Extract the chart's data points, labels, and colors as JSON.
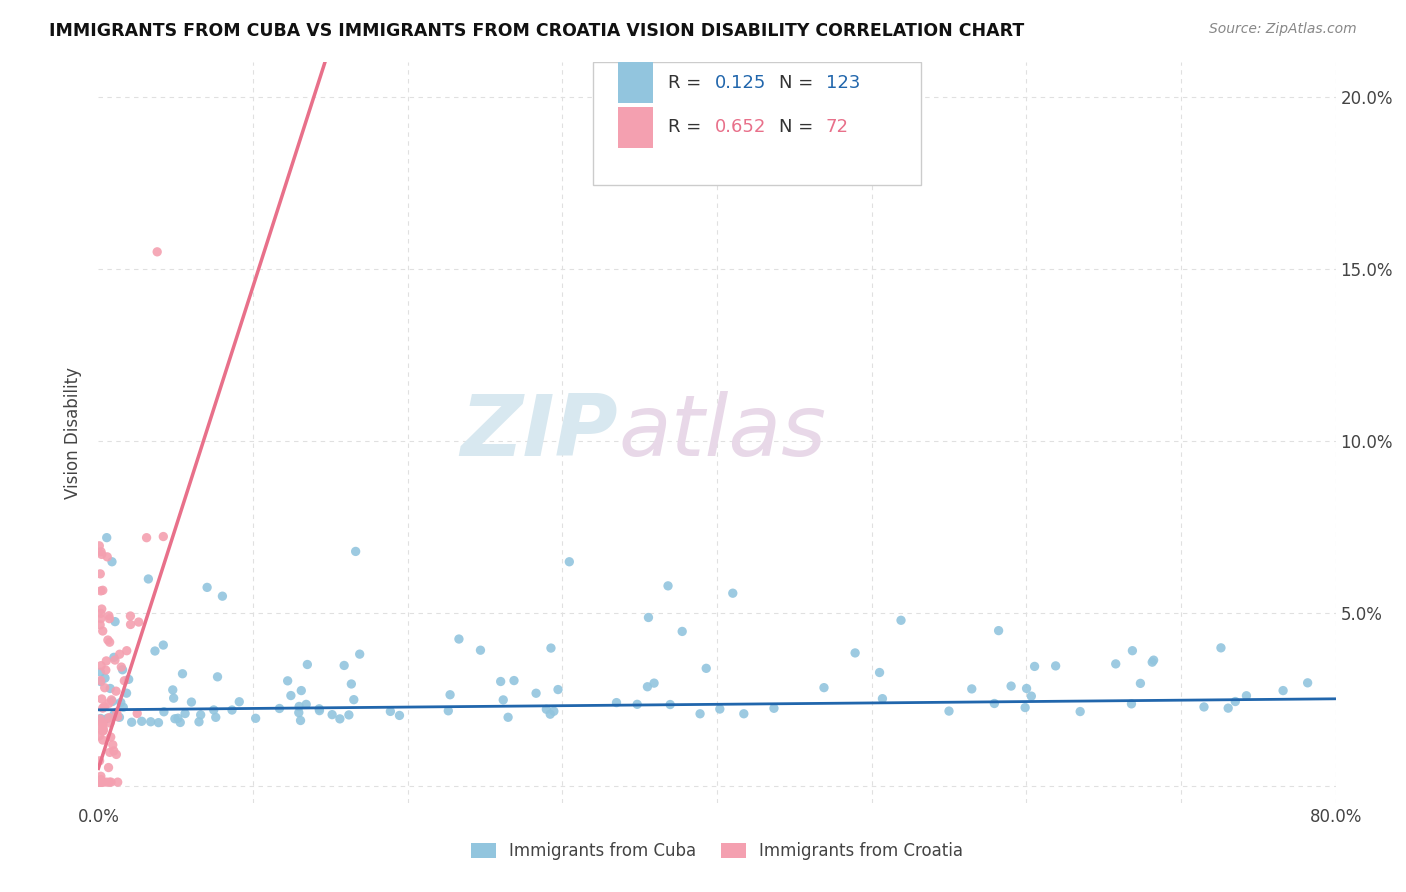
{
  "title": "IMMIGRANTS FROM CUBA VS IMMIGRANTS FROM CROATIA VISION DISABILITY CORRELATION CHART",
  "source": "Source: ZipAtlas.com",
  "ylabel": "Vision Disability",
  "xlim": [
    0.0,
    0.8
  ],
  "ylim": [
    -0.005,
    0.21
  ],
  "yticks": [
    0.0,
    0.05,
    0.1,
    0.15,
    0.2
  ],
  "yticklabels": [
    "",
    "5.0%",
    "10.0%",
    "15.0%",
    "20.0%"
  ],
  "xtick_positions": [
    0.0,
    0.1,
    0.2,
    0.3,
    0.4,
    0.5,
    0.6,
    0.7,
    0.8
  ],
  "xticklabels": [
    "0.0%",
    "",
    "",
    "",
    "",
    "",
    "",
    "",
    "80.0%"
  ],
  "cuba_R": 0.125,
  "cuba_N": 123,
  "croatia_R": 0.652,
  "croatia_N": 72,
  "cuba_color": "#92c5de",
  "croatia_color": "#f4a0b0",
  "cuba_line_color": "#2166ac",
  "croatia_line_color": "#e8708a",
  "watermark_zip": "ZIP",
  "watermark_atlas": "atlas",
  "background_color": "#ffffff",
  "grid_color": "#e0e0e0",
  "legend_r_color": "#2166ac",
  "legend_n_color": "#2166ac",
  "legend_r2_color": "#e8708a",
  "legend_n2_color": "#e8708a"
}
